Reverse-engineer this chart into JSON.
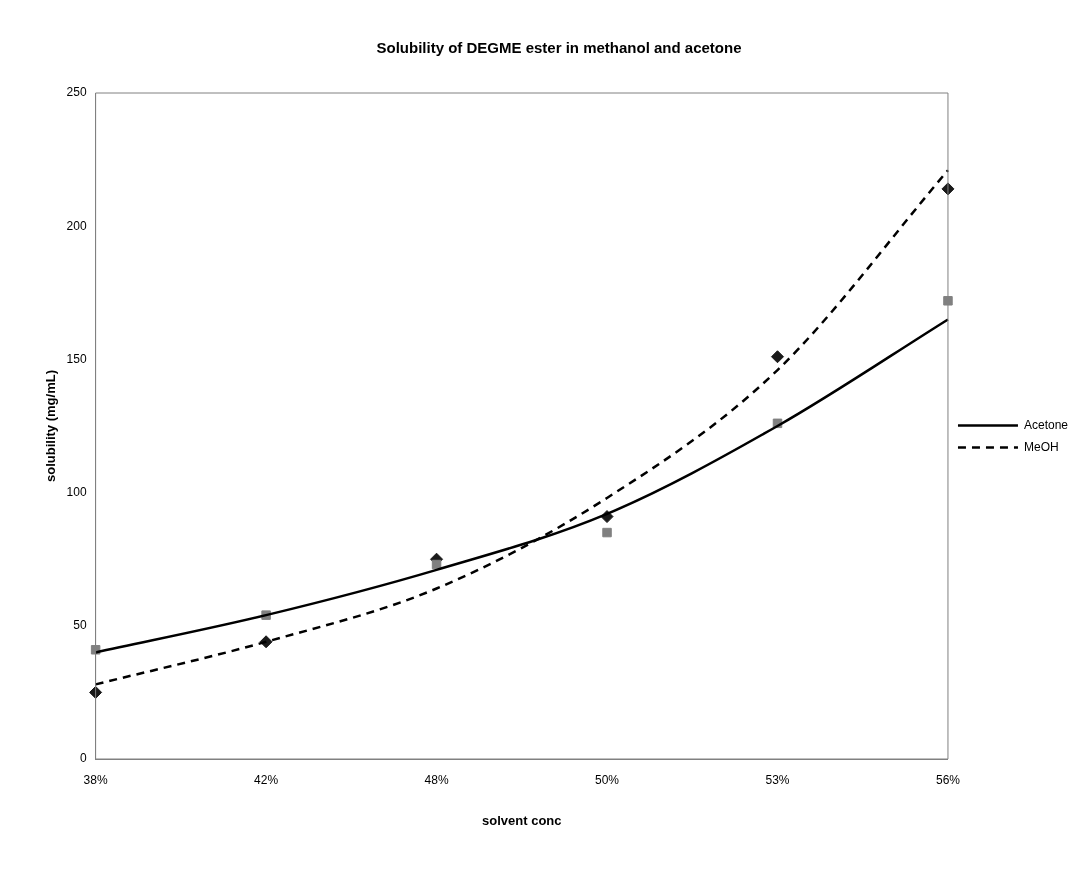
{
  "chart_data": {
    "type": "line",
    "title": "Solubility of DEGME ester in methanol and acetone",
    "xlabel": "solvent conc",
    "ylabel": "solubility (mg/mL)",
    "categories": [
      "38%",
      "42%",
      "48%",
      "50%",
      "53%",
      "56%"
    ],
    "ylim": [
      0,
      250
    ],
    "yticks": [
      0,
      50,
      100,
      150,
      200,
      250
    ],
    "grid": false,
    "legend": "right",
    "series": [
      {
        "name": "Acetone",
        "type": "line",
        "color": "#000000",
        "line_style": "solid",
        "marker": "none",
        "values": [
          40,
          54,
          71,
          92,
          125,
          165
        ]
      },
      {
        "name": "MeOH",
        "type": "line",
        "color": "#000000",
        "line_style": "dashed",
        "marker": "none",
        "values": [
          28,
          44,
          64,
          98,
          146,
          221
        ]
      },
      {
        "type": "scatter",
        "color": "#808080",
        "marker": "square",
        "x": [
          "38%",
          "42%",
          "48%",
          "50%",
          "53%",
          "56%"
        ],
        "values": [
          41,
          54,
          73,
          85,
          126,
          172
        ]
      },
      {
        "type": "scatter",
        "color": "#1a1a1a",
        "marker": "diamond",
        "x": [
          "38%",
          "42%",
          "48%",
          "50%",
          "53%",
          "56%"
        ],
        "values": [
          25,
          44,
          75,
          91,
          151,
          214
        ]
      }
    ]
  }
}
